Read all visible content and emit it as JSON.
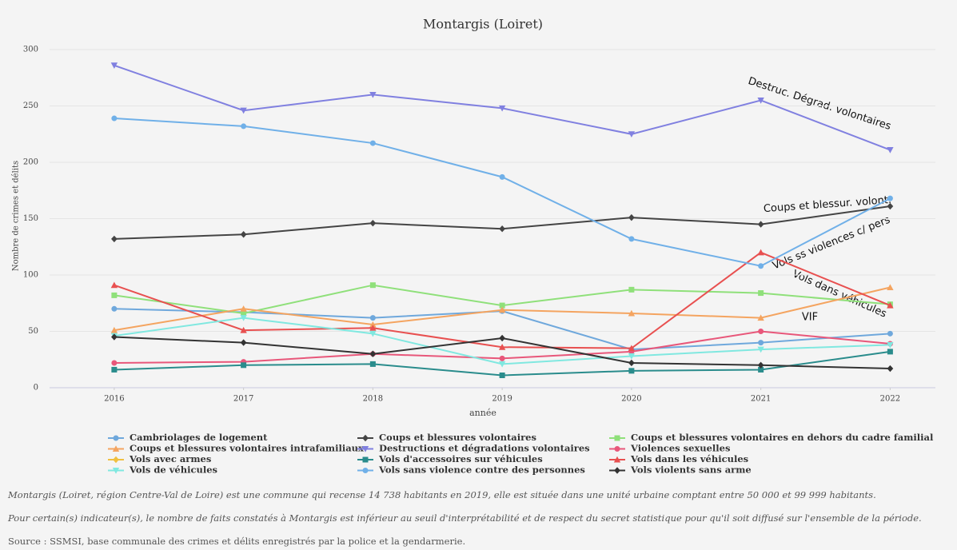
{
  "chart_data": {
    "type": "line",
    "title": "Montargis (Loiret)",
    "x_label": "année",
    "y_label": "Nombre de crimes et délits",
    "x": [
      2016,
      2017,
      2018,
      2019,
      2020,
      2021,
      2022
    ],
    "xlim": [
      2015.5,
      2022.35
    ],
    "xticks": [
      2016,
      2017,
      2018,
      2019,
      2020,
      2021,
      2022
    ],
    "ylim": [
      0,
      305
    ],
    "yticks": [
      0,
      50,
      100,
      150,
      200,
      250,
      300
    ],
    "grid": true,
    "series": [
      {
        "name": "Cambriolages de logement",
        "color": "#6fa8dc",
        "symbol": "circle",
        "values": [
          70,
          67,
          62,
          68,
          34,
          40,
          48
        ]
      },
      {
        "name": "Coups et blessures volontaires",
        "color": "#444444",
        "symbol": "diamond",
        "values": [
          132,
          136,
          146,
          141,
          151,
          145,
          161
        ]
      },
      {
        "name": "Coups et blessures volontaires en dehors du cadre familial",
        "color": "#8fe07a",
        "symbol": "square",
        "values": [
          82,
          66,
          91,
          73,
          87,
          84,
          74
        ]
      },
      {
        "name": "Coups et blessures volontaires intrafamiliaux",
        "color": "#f4a460",
        "symbol": "triangle-up",
        "values": [
          51,
          70,
          56,
          69,
          66,
          62,
          89
        ]
      },
      {
        "name": "Destructions et dégradations volontaires",
        "color": "#8080e0",
        "symbol": "triangle-down",
        "values": [
          286,
          246,
          260,
          248,
          225,
          255,
          211
        ]
      },
      {
        "name": "Violences sexuelles",
        "color": "#e8577a",
        "symbol": "circle",
        "values": [
          22,
          23,
          30,
          26,
          32,
          50,
          39
        ]
      },
      {
        "name": "Vols avec armes",
        "color": "#f0c040",
        "symbol": "diamond",
        "values": [
          null,
          null,
          null,
          null,
          null,
          null,
          null
        ]
      },
      {
        "name": "Vols d'accessoires sur véhicules",
        "color": "#2a8c8c",
        "symbol": "square",
        "values": [
          16,
          20,
          21,
          11,
          15,
          16,
          32
        ]
      },
      {
        "name": "Vols dans les véhicules",
        "color": "#e85050",
        "symbol": "triangle-up",
        "values": [
          91,
          51,
          53,
          36,
          35,
          120,
          73
        ]
      },
      {
        "name": "Vols de véhicules",
        "color": "#80e8e0",
        "symbol": "triangle-down",
        "values": [
          46,
          62,
          48,
          21,
          28,
          34,
          38
        ]
      },
      {
        "name": "Vols sans violence contre des personnes",
        "color": "#70b0e8",
        "symbol": "circle",
        "values": [
          239,
          232,
          217,
          187,
          132,
          108,
          168
        ]
      },
      {
        "name": "Vols violents sans arme",
        "color": "#333333",
        "symbol": "diamond",
        "values": [
          45,
          40,
          30,
          44,
          22,
          20,
          17
        ]
      }
    ],
    "annotations": [
      "Destruc. Dégrad. volontaires",
      "Coups et blessur. volont.",
      "Vols ss violences c/ pers",
      "Vols dans véhicules",
      "VIF"
    ]
  },
  "footer": [
    "Montargis (Loiret, région Centre-Val de Loire) est une commune qui recense 14 738 habitants en 2019, elle est située dans une unité urbaine comptant entre 50 000 et 99 999 habitants.",
    "Pour certain(s) indicateur(s), le nombre de faits constatés à Montargis est inférieur au seuil d'interprétabilité et de respect du secret statistique pour qu'il soit diffusé sur l'ensemble de la période.",
    "Source : SSMSI, base communale des crimes et délits enregistrés par la police et la gendarmerie."
  ]
}
